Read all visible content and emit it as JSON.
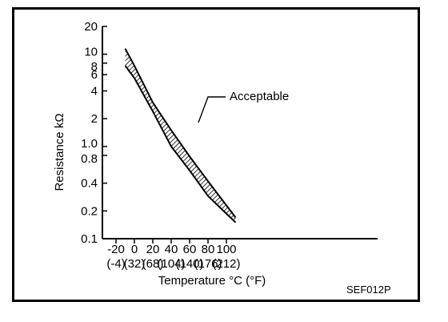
{
  "chart_data": {
    "type": "area",
    "title": "",
    "xlabel": "Temperature °C (°F)",
    "ylabel": "Resistance kΩ",
    "x_ticks": [
      {
        "c": "-20",
        "f": "(-4)"
      },
      {
        "c": "0",
        "f": "(32)"
      },
      {
        "c": "20",
        "f": "(68)"
      },
      {
        "c": "40",
        "f": "(104)"
      },
      {
        "c": "60",
        "f": "(140)"
      },
      {
        "c": "80",
        "f": "(176)"
      },
      {
        "c": "100",
        "f": "(212)"
      }
    ],
    "y_ticks": [
      "20",
      "10",
      "8",
      "6",
      "4",
      "2",
      "1.0",
      "0.8",
      "0.4",
      "0.2",
      "0.1"
    ],
    "y_scale": "log",
    "xlim": [
      -30,
      130
    ],
    "ylim": [
      0.1,
      20
    ],
    "series": [
      {
        "name": "Acceptable",
        "x": [
          -10,
          0,
          20,
          40,
          60,
          80,
          110
        ],
        "upper": [
          11.5,
          7.5,
          3.0,
          1.5,
          0.78,
          0.42,
          0.17
        ],
        "lower": [
          7.5,
          5.5,
          2.4,
          1.0,
          0.55,
          0.29,
          0.15
        ]
      }
    ],
    "annotations": [
      {
        "text": "Acceptable"
      }
    ],
    "grid": false
  },
  "figure_code": "SEF012P"
}
